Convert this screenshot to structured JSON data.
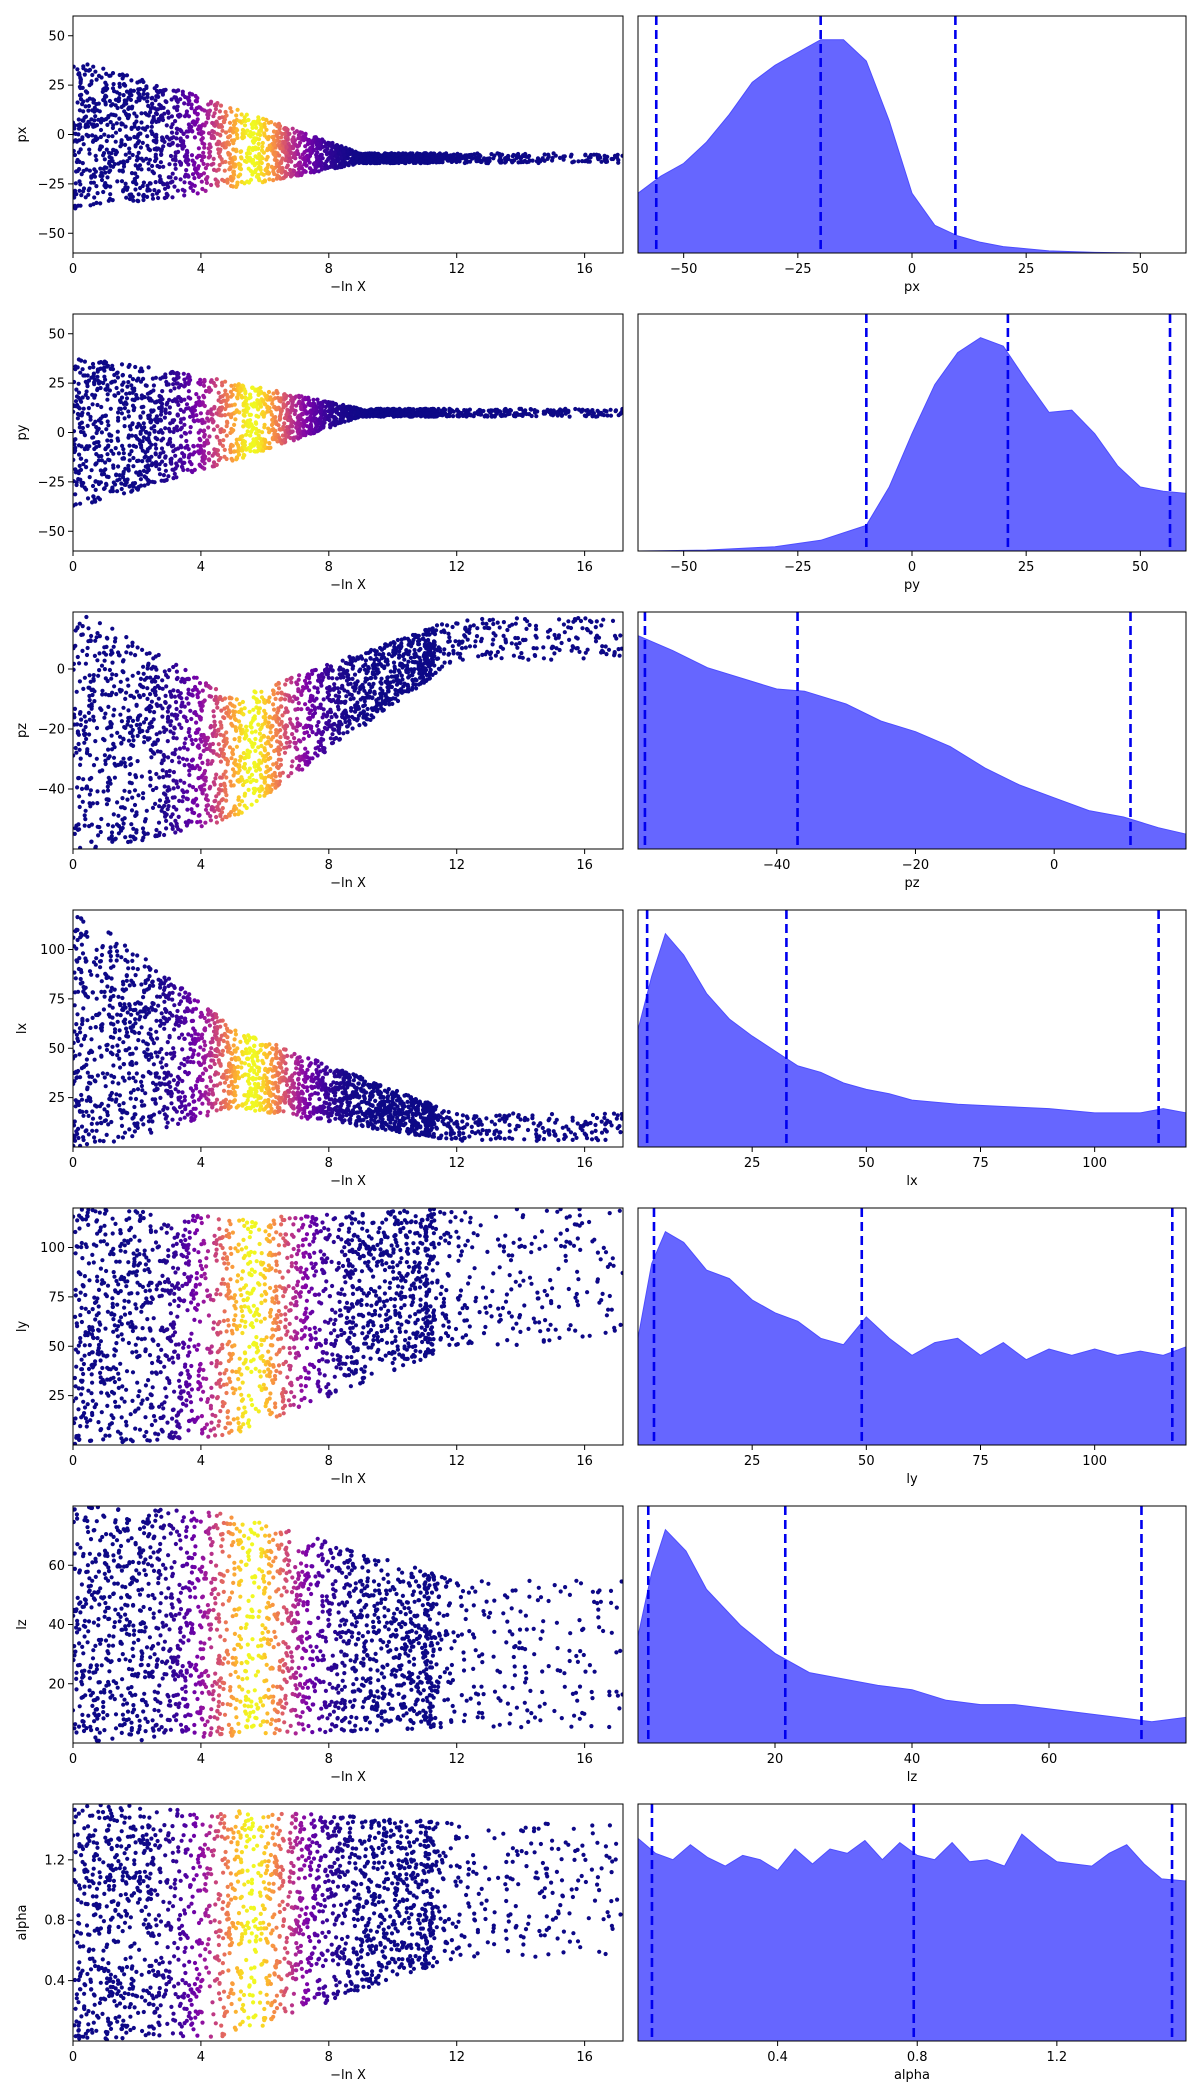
{
  "figure": {
    "type": "dynesty trace plot"
  },
  "chart_data": [
    {
      "type": "scatter",
      "param": "px",
      "xlabel": "−ln X",
      "ylabel": "px",
      "xlim": [
        0,
        17.2
      ],
      "ylim": [
        -60,
        60
      ],
      "xticks": [
        0,
        4,
        8,
        12,
        16
      ],
      "yticks": [
        -50,
        -25,
        0,
        25,
        50
      ],
      "shape": {
        "converge_at": 9,
        "target": -12,
        "start_spread": 75,
        "end_spread": 5
      },
      "colormap": "plasma"
    },
    {
      "type": "area",
      "param": "px",
      "xlabel": "px",
      "xlim": [
        -60,
        60
      ],
      "xticks": [
        -50,
        -25,
        0,
        25,
        50
      ],
      "quantiles": [
        -56,
        -20,
        9.5
      ],
      "density": [
        [
          -60,
          0.28
        ],
        [
          -55,
          0.36
        ],
        [
          -50,
          0.42
        ],
        [
          -45,
          0.52
        ],
        [
          -40,
          0.65
        ],
        [
          -35,
          0.8
        ],
        [
          -30,
          0.88
        ],
        [
          -25,
          0.94
        ],
        [
          -20,
          1.0
        ],
        [
          -15,
          1.0
        ],
        [
          -10,
          0.9
        ],
        [
          -5,
          0.62
        ],
        [
          0,
          0.28
        ],
        [
          5,
          0.13
        ],
        [
          10,
          0.08
        ],
        [
          15,
          0.05
        ],
        [
          20,
          0.03
        ],
        [
          25,
          0.02
        ],
        [
          30,
          0.01
        ],
        [
          40,
          0.003
        ],
        [
          50,
          0.0
        ],
        [
          60,
          0.0
        ]
      ]
    },
    {
      "type": "scatter",
      "param": "py",
      "xlabel": "−ln X",
      "ylabel": "py",
      "xlim": [
        0,
        17.2
      ],
      "ylim": [
        -60,
        60
      ],
      "xticks": [
        0,
        4,
        8,
        12,
        16
      ],
      "yticks": [
        -50,
        -25,
        0,
        25,
        50
      ],
      "shape": {
        "converge_at": 9,
        "target": 10,
        "start_spread": 75,
        "end_spread": 4
      },
      "colormap": "plasma"
    },
    {
      "type": "area",
      "param": "py",
      "xlabel": "py",
      "xlim": [
        -60,
        60
      ],
      "xticks": [
        -50,
        -25,
        0,
        25,
        50
      ],
      "quantiles": [
        -10,
        21,
        56.5
      ],
      "density": [
        [
          -60,
          0.0
        ],
        [
          -45,
          0.004
        ],
        [
          -30,
          0.02
        ],
        [
          -20,
          0.05
        ],
        [
          -10,
          0.12
        ],
        [
          -5,
          0.3
        ],
        [
          0,
          0.55
        ],
        [
          5,
          0.78
        ],
        [
          10,
          0.93
        ],
        [
          15,
          1.0
        ],
        [
          20,
          0.96
        ],
        [
          25,
          0.8
        ],
        [
          30,
          0.65
        ],
        [
          35,
          0.66
        ],
        [
          40,
          0.55
        ],
        [
          45,
          0.4
        ],
        [
          50,
          0.3
        ],
        [
          55,
          0.28
        ],
        [
          60,
          0.27
        ]
      ]
    },
    {
      "type": "scatter",
      "param": "pz",
      "xlabel": "−ln X",
      "ylabel": "pz",
      "xlim": [
        0,
        17.2
      ],
      "ylim": [
        -60,
        19
      ],
      "xticks": [
        0,
        4,
        8,
        12,
        16
      ],
      "yticks": [
        -40,
        -20,
        0
      ],
      "shape": {
        "converge_at": 5,
        "target": -30,
        "start_spread": 80,
        "end_spread": 40,
        "late_target": 10,
        "late_spread": 14
      },
      "colormap": "plasma"
    },
    {
      "type": "area",
      "param": "pz",
      "xlabel": "pz",
      "xlim": [
        -60,
        19
      ],
      "xticks": [
        -40,
        -20,
        0
      ],
      "quantiles": [
        -59,
        -37,
        11
      ],
      "density": [
        [
          -60,
          1.0
        ],
        [
          -55,
          0.93
        ],
        [
          -50,
          0.85
        ],
        [
          -45,
          0.8
        ],
        [
          -40,
          0.75
        ],
        [
          -36,
          0.74
        ],
        [
          -30,
          0.68
        ],
        [
          -25,
          0.6
        ],
        [
          -20,
          0.55
        ],
        [
          -15,
          0.48
        ],
        [
          -10,
          0.38
        ],
        [
          -5,
          0.3
        ],
        [
          0,
          0.24
        ],
        [
          5,
          0.18
        ],
        [
          10,
          0.15
        ],
        [
          15,
          0.1
        ],
        [
          19,
          0.07
        ]
      ]
    },
    {
      "type": "scatter",
      "param": "lx",
      "xlabel": "−ln X",
      "ylabel": "lx",
      "xlim": [
        0,
        17.2
      ],
      "ylim": [
        0,
        120
      ],
      "xticks": [
        0,
        4,
        8,
        12,
        16
      ],
      "yticks": [
        25,
        50,
        75,
        100
      ],
      "shape": {
        "converge_at": 5,
        "target": 40,
        "start_spread": 120,
        "end_spread": 40,
        "late_target": 10,
        "late_spread": 14
      },
      "colormap": "plasma"
    },
    {
      "type": "area",
      "param": "lx",
      "xlabel": "lx",
      "xlim": [
        0,
        120
      ],
      "xticks": [
        25,
        50,
        75,
        100
      ],
      "quantiles": [
        2,
        32.5,
        114
      ],
      "density": [
        [
          0,
          0.55
        ],
        [
          3,
          0.8
        ],
        [
          6,
          1.0
        ],
        [
          10,
          0.9
        ],
        [
          15,
          0.72
        ],
        [
          20,
          0.6
        ],
        [
          25,
          0.52
        ],
        [
          30,
          0.45
        ],
        [
          35,
          0.38
        ],
        [
          40,
          0.35
        ],
        [
          45,
          0.3
        ],
        [
          50,
          0.27
        ],
        [
          55,
          0.25
        ],
        [
          60,
          0.22
        ],
        [
          70,
          0.2
        ],
        [
          80,
          0.19
        ],
        [
          90,
          0.18
        ],
        [
          100,
          0.16
        ],
        [
          110,
          0.16
        ],
        [
          115,
          0.18
        ],
        [
          120,
          0.16
        ]
      ]
    },
    {
      "type": "scatter",
      "param": "ly",
      "xlabel": "−ln X",
      "ylabel": "ly",
      "xlim": [
        0,
        17.2
      ],
      "ylim": [
        0,
        120
      ],
      "xticks": [
        0,
        4,
        8,
        12,
        16
      ],
      "yticks": [
        25,
        50,
        75,
        100
      ],
      "shape": {
        "converge_at": 5,
        "target": 60,
        "start_spread": 120,
        "end_spread": 110,
        "late_target": 85,
        "late_spread": 70
      },
      "colormap": "plasma"
    },
    {
      "type": "area",
      "param": "ly",
      "xlabel": "ly",
      "xlim": [
        0,
        120
      ],
      "xticks": [
        25,
        50,
        75,
        100
      ],
      "quantiles": [
        3.5,
        49,
        117
      ],
      "density": [
        [
          0,
          0.5
        ],
        [
          3,
          0.85
        ],
        [
          6,
          1.0
        ],
        [
          10,
          0.95
        ],
        [
          15,
          0.82
        ],
        [
          20,
          0.78
        ],
        [
          25,
          0.68
        ],
        [
          30,
          0.62
        ],
        [
          35,
          0.58
        ],
        [
          40,
          0.5
        ],
        [
          45,
          0.47
        ],
        [
          50,
          0.6
        ],
        [
          55,
          0.5
        ],
        [
          60,
          0.42
        ],
        [
          65,
          0.48
        ],
        [
          70,
          0.5
        ],
        [
          75,
          0.42
        ],
        [
          80,
          0.48
        ],
        [
          85,
          0.4
        ],
        [
          90,
          0.45
        ],
        [
          95,
          0.42
        ],
        [
          100,
          0.45
        ],
        [
          105,
          0.42
        ],
        [
          110,
          0.44
        ],
        [
          115,
          0.42
        ],
        [
          120,
          0.46
        ]
      ]
    },
    {
      "type": "scatter",
      "param": "lz",
      "xlabel": "−ln X",
      "ylabel": "lz",
      "xlim": [
        0,
        17.2
      ],
      "ylim": [
        0,
        80
      ],
      "xticks": [
        0,
        4,
        8,
        12,
        16
      ],
      "yticks": [
        20,
        40,
        60
      ],
      "shape": {
        "converge_at": 5,
        "target": 40,
        "start_spread": 80,
        "end_spread": 75,
        "late_target": 30,
        "late_spread": 50
      },
      "colormap": "plasma"
    },
    {
      "type": "area",
      "param": "lz",
      "xlabel": "lz",
      "xlim": [
        0,
        80
      ],
      "xticks": [
        20,
        40,
        60
      ],
      "quantiles": [
        1.5,
        21.5,
        73.5
      ],
      "density": [
        [
          0,
          0.5
        ],
        [
          2,
          0.8
        ],
        [
          4,
          1.0
        ],
        [
          7,
          0.9
        ],
        [
          10,
          0.72
        ],
        [
          15,
          0.55
        ],
        [
          20,
          0.42
        ],
        [
          25,
          0.33
        ],
        [
          30,
          0.3
        ],
        [
          35,
          0.27
        ],
        [
          40,
          0.25
        ],
        [
          45,
          0.2
        ],
        [
          50,
          0.18
        ],
        [
          55,
          0.18
        ],
        [
          60,
          0.16
        ],
        [
          65,
          0.14
        ],
        [
          70,
          0.12
        ],
        [
          75,
          0.1
        ],
        [
          80,
          0.12
        ]
      ]
    },
    {
      "type": "scatter",
      "param": "alpha",
      "xlabel": "−ln X",
      "ylabel": "alpha",
      "xlim": [
        0,
        17.2
      ],
      "ylim": [
        0,
        1.57
      ],
      "xticks": [
        0,
        4,
        8,
        12,
        16
      ],
      "yticks": [
        0.4,
        0.8,
        1.2
      ],
      "shape": {
        "converge_at": 5,
        "target": 0.78,
        "start_spread": 1.57,
        "end_spread": 1.5,
        "late_target": 1.0,
        "late_spread": 0.9
      },
      "colormap": "plasma"
    },
    {
      "type": "area",
      "param": "alpha",
      "xlabel": "alpha",
      "xlim": [
        0,
        1.57
      ],
      "xticks": [
        0.4,
        0.8,
        1.2
      ],
      "quantiles": [
        0.04,
        0.79,
        1.53
      ],
      "density": [
        [
          0,
          0.95
        ],
        [
          0.05,
          0.88
        ],
        [
          0.1,
          0.85
        ],
        [
          0.15,
          0.92
        ],
        [
          0.2,
          0.86
        ],
        [
          0.25,
          0.82
        ],
        [
          0.3,
          0.87
        ],
        [
          0.35,
          0.85
        ],
        [
          0.4,
          0.8
        ],
        [
          0.45,
          0.9
        ],
        [
          0.5,
          0.83
        ],
        [
          0.55,
          0.9
        ],
        [
          0.6,
          0.88
        ],
        [
          0.65,
          0.94
        ],
        [
          0.7,
          0.85
        ],
        [
          0.75,
          0.93
        ],
        [
          0.8,
          0.87
        ],
        [
          0.85,
          0.85
        ],
        [
          0.9,
          0.93
        ],
        [
          0.95,
          0.84
        ],
        [
          1.0,
          0.85
        ],
        [
          1.05,
          0.82
        ],
        [
          1.1,
          0.97
        ],
        [
          1.15,
          0.9
        ],
        [
          1.2,
          0.84
        ],
        [
          1.25,
          0.83
        ],
        [
          1.3,
          0.82
        ],
        [
          1.35,
          0.88
        ],
        [
          1.4,
          0.92
        ],
        [
          1.45,
          0.83
        ],
        [
          1.5,
          0.76
        ],
        [
          1.57,
          0.75
        ]
      ]
    }
  ]
}
